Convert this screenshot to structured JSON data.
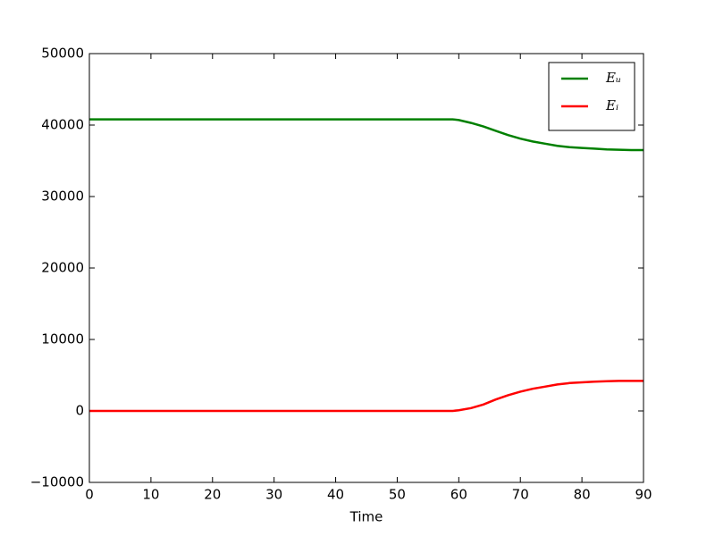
{
  "chart_data": {
    "type": "line",
    "xlabel": "Time",
    "x": [
      0,
      5,
      10,
      15,
      20,
      25,
      30,
      35,
      40,
      45,
      50,
      55,
      59,
      60,
      62,
      64,
      66,
      68,
      70,
      72,
      74,
      76,
      78,
      80,
      82,
      84,
      86,
      88,
      90
    ],
    "series": [
      {
        "name": "Eᵤ",
        "color": "#008000",
        "values": [
          40800,
          40800,
          40800,
          40800,
          40800,
          40800,
          40800,
          40800,
          40800,
          40800,
          40800,
          40800,
          40800,
          40700,
          40300,
          39800,
          39200,
          38600,
          38100,
          37700,
          37400,
          37100,
          36900,
          36800,
          36700,
          36600,
          36550,
          36500,
          36500
        ]
      },
      {
        "name": "Eᵢ",
        "color": "#ff0000",
        "values": [
          0,
          0,
          0,
          0,
          0,
          0,
          0,
          0,
          0,
          0,
          0,
          0,
          0,
          100,
          400,
          900,
          1600,
          2200,
          2700,
          3100,
          3400,
          3700,
          3900,
          4000,
          4100,
          4150,
          4200,
          4200,
          4200
        ]
      }
    ],
    "xlim": [
      0,
      90
    ],
    "xticks": [
      0,
      10,
      20,
      30,
      40,
      50,
      60,
      70,
      80,
      90
    ],
    "ylim": [
      -10000,
      50000
    ],
    "yticks": [
      {
        "value": -10000,
        "label": "−10000"
      },
      0,
      10000,
      20000,
      30000,
      40000,
      50000
    ],
    "grid": false,
    "legend": "upper right"
  }
}
